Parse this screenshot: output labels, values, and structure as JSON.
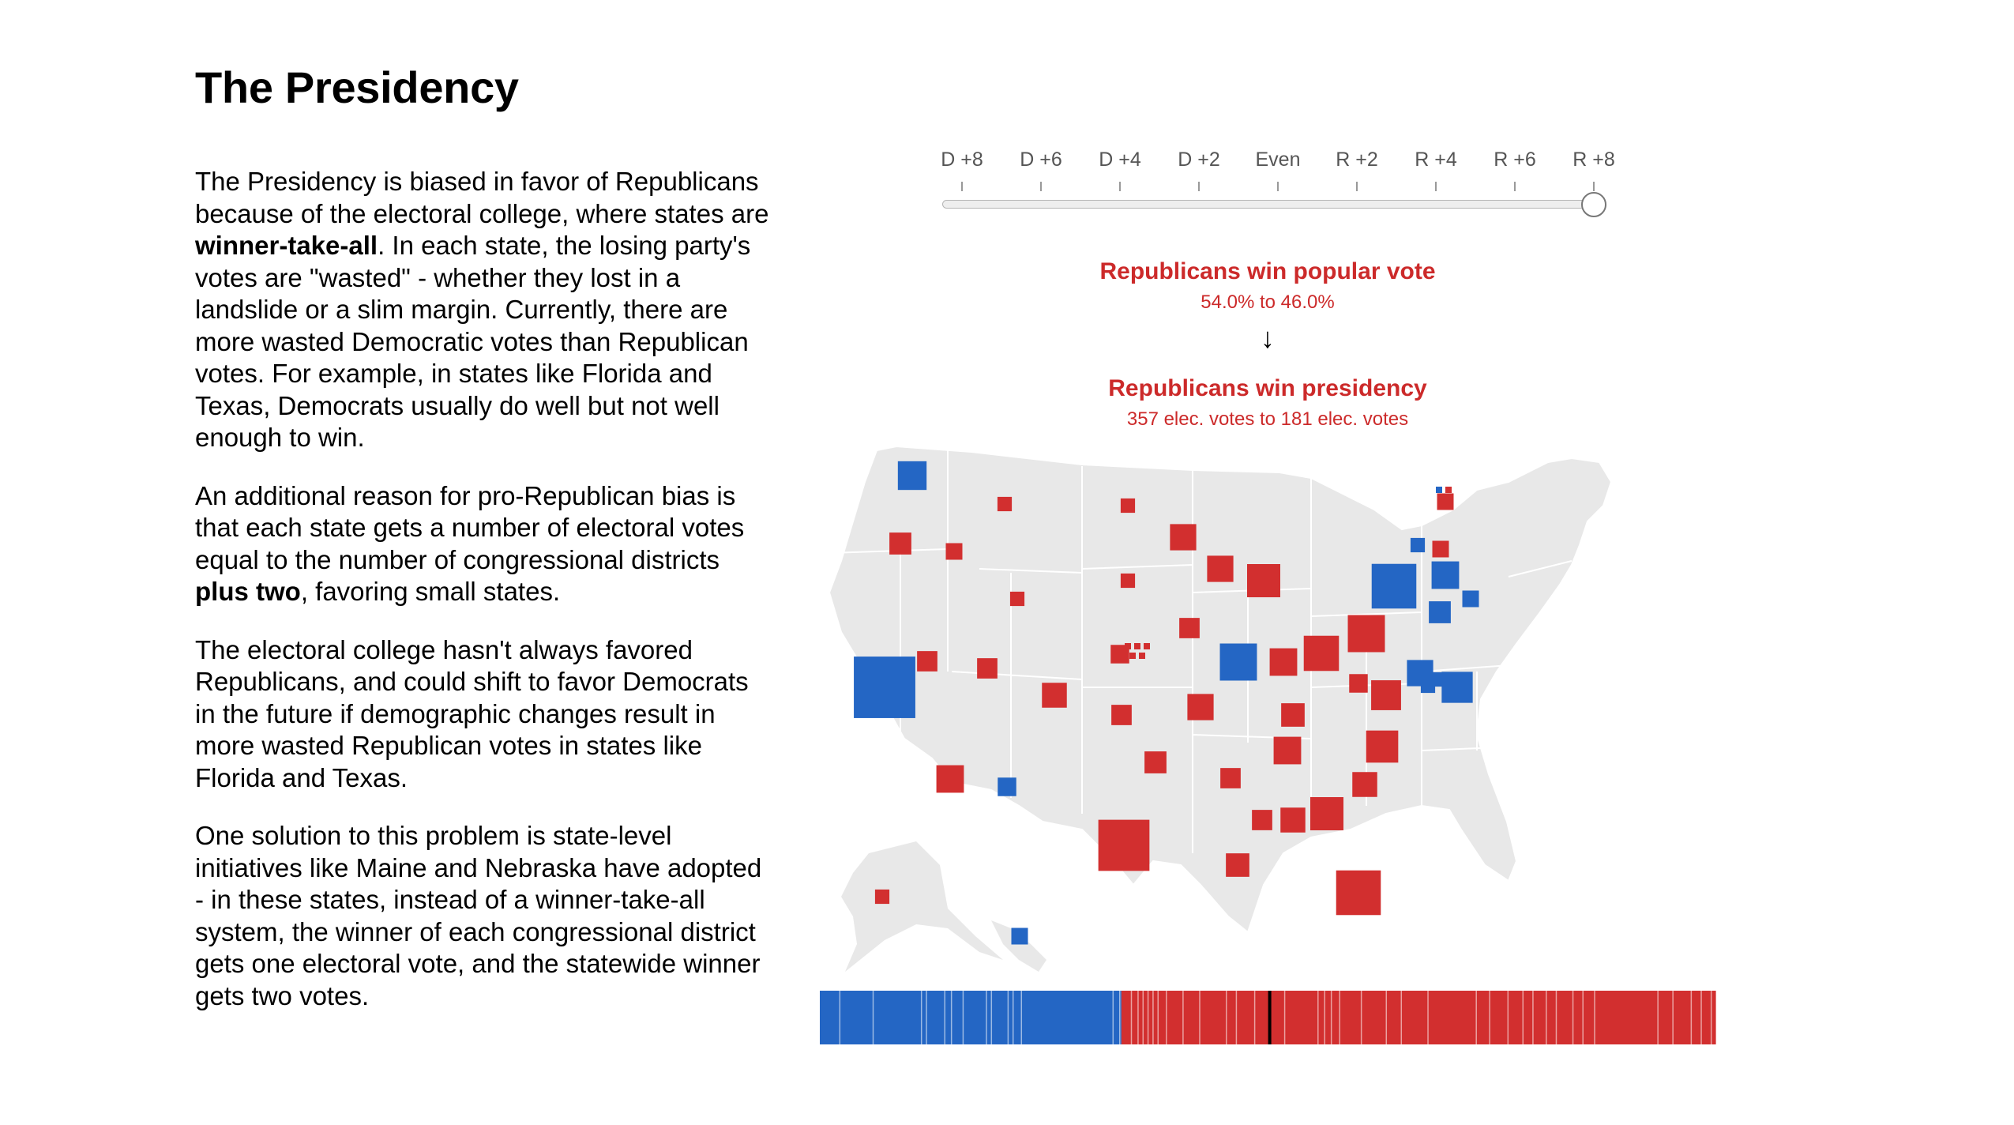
{
  "page": {
    "title": "The Presidency"
  },
  "article": {
    "p1": {
      "a": "The Presidency is biased in favor of Republicans because of the electoral college, where states are ",
      "b": "winner-take-all",
      "c": ". In each state, the losing party's votes are \"wasted\" - whether they lost in a landslide or a slim margin. Currently, there are more wasted Democratic votes than Republican votes. For example, in states like Florida and Texas, Democrats usually do well but not well enough to win."
    },
    "p2": {
      "a": "An additional reason for pro-Republican bias is that each state gets a number of electoral votes equal to the number of congressional districts ",
      "b": "plus two",
      "c": ", favoring small states."
    },
    "p3": "The electoral college hasn't always favored Republicans, and could shift to favor Democrats in the future if demographic changes result in more wasted Republican votes in states like Florida and Texas.",
    "p4": "One solution to this problem is state-level initiatives like Maine and Nebraska have adopted - in these states, instead of a winner-take-all system, the winner of each congressional district gets one electoral vote, and the statewide winner gets two votes."
  },
  "slider": {
    "ticks": [
      "D +8",
      "D +6",
      "D +4",
      "D +2",
      "Even",
      "R +2",
      "R +4",
      "R +6",
      "R +8"
    ],
    "selected_index": 8
  },
  "results": {
    "popular_vote": {
      "headline": "Republicans win popular vote",
      "detail": "54.0% to 46.0%"
    },
    "arrow": "↓",
    "presidency": {
      "headline": "Republicans win presidency",
      "detail": "357 elec. votes to 181 elec. votes"
    }
  },
  "colors": {
    "democrat": "#2466c4",
    "republican": "#d22f2f",
    "land": "#e8e8e8",
    "headline_red": "#cc2a2a"
  },
  "electoral_bar": {
    "dem_votes": 181,
    "rep_votes": 357,
    "majority_marker": 270
  },
  "map": {
    "states": [
      {
        "abbr": "WA",
        "ev": 12,
        "party": "D"
      },
      {
        "abbr": "OR",
        "ev": 7,
        "party": "R"
      },
      {
        "abbr": "ID",
        "ev": 4,
        "party": "R"
      },
      {
        "abbr": "MT",
        "ev": 3,
        "party": "R"
      },
      {
        "abbr": "ND",
        "ev": 3,
        "party": "R"
      },
      {
        "abbr": "SD",
        "ev": 3,
        "party": "R"
      },
      {
        "abbr": "WY",
        "ev": 3,
        "party": "R"
      },
      {
        "abbr": "NE",
        "ev": 5,
        "party": "R"
      },
      {
        "abbr": "MN",
        "ev": 10,
        "party": "R"
      },
      {
        "abbr": "WI",
        "ev": 10,
        "party": "R"
      },
      {
        "abbr": "MI",
        "ev": 16,
        "party": "R"
      },
      {
        "abbr": "IA",
        "ev": 6,
        "party": "R"
      },
      {
        "abbr": "IL",
        "ev": 20,
        "party": "D"
      },
      {
        "abbr": "IN",
        "ev": 11,
        "party": "R"
      },
      {
        "abbr": "OH",
        "ev": 18,
        "party": "R"
      },
      {
        "abbr": "PA",
        "ev": 20,
        "party": "R"
      },
      {
        "abbr": "NY",
        "ev": 29,
        "party": "D"
      },
      {
        "abbr": "VT",
        "ev": 3,
        "party": "D"
      },
      {
        "abbr": "NH",
        "ev": 4,
        "party": "R"
      },
      {
        "abbr": "ME",
        "ev": 4,
        "party": "R"
      },
      {
        "abbr": "MA",
        "ev": 11,
        "party": "D"
      },
      {
        "abbr": "RI",
        "ev": 4,
        "party": "D"
      },
      {
        "abbr": "CT",
        "ev": 7,
        "party": "D"
      },
      {
        "abbr": "NJ",
        "ev": 14,
        "party": "D"
      },
      {
        "abbr": "DE",
        "ev": 3,
        "party": "D"
      },
      {
        "abbr": "MD",
        "ev": 10,
        "party": "D"
      },
      {
        "abbr": "DC",
        "ev": 3,
        "party": "D"
      },
      {
        "abbr": "WV",
        "ev": 5,
        "party": "R"
      },
      {
        "abbr": "VA",
        "ev": 13,
        "party": "R"
      },
      {
        "abbr": "NC",
        "ev": 15,
        "party": "R"
      },
      {
        "abbr": "SC",
        "ev": 9,
        "party": "R"
      },
      {
        "abbr": "GA",
        "ev": 16,
        "party": "R"
      },
      {
        "abbr": "FL",
        "ev": 29,
        "party": "R"
      },
      {
        "abbr": "KY",
        "ev": 8,
        "party": "R"
      },
      {
        "abbr": "TN",
        "ev": 11,
        "party": "R"
      },
      {
        "abbr": "AL",
        "ev": 9,
        "party": "R"
      },
      {
        "abbr": "MS",
        "ev": 6,
        "party": "R"
      },
      {
        "abbr": "LA",
        "ev": 8,
        "party": "R"
      },
      {
        "abbr": "AR",
        "ev": 6,
        "party": "R"
      },
      {
        "abbr": "MO",
        "ev": 10,
        "party": "R"
      },
      {
        "abbr": "KS",
        "ev": 6,
        "party": "R"
      },
      {
        "abbr": "OK",
        "ev": 7,
        "party": "R"
      },
      {
        "abbr": "TX",
        "ev": 38,
        "party": "R"
      },
      {
        "abbr": "CO",
        "ev": 9,
        "party": "R"
      },
      {
        "abbr": "NM",
        "ev": 5,
        "party": "D"
      },
      {
        "abbr": "AZ",
        "ev": 11,
        "party": "R"
      },
      {
        "abbr": "UT",
        "ev": 6,
        "party": "R"
      },
      {
        "abbr": "NV",
        "ev": 6,
        "party": "R"
      },
      {
        "abbr": "CA",
        "ev": 55,
        "party": "D"
      },
      {
        "abbr": "AK",
        "ev": 3,
        "party": "R"
      },
      {
        "abbr": "HI",
        "ev": 4,
        "party": "D"
      }
    ]
  }
}
